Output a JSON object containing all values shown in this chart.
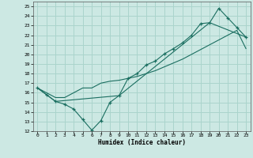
{
  "xlabel": "Humidex (Indice chaleur)",
  "background_color": "#cce8e3",
  "grid_color": "#aad4cc",
  "line_color": "#1a6e60",
  "xlim": [
    -0.5,
    23.5
  ],
  "ylim": [
    12,
    25.5
  ],
  "xticks": [
    0,
    1,
    2,
    3,
    4,
    5,
    6,
    7,
    8,
    9,
    10,
    11,
    12,
    13,
    14,
    15,
    16,
    17,
    18,
    19,
    20,
    21,
    22,
    23
  ],
  "yticks": [
    12,
    13,
    14,
    15,
    16,
    17,
    18,
    19,
    20,
    21,
    22,
    23,
    24,
    25
  ],
  "line1_x": [
    0,
    1,
    2,
    3,
    4,
    5,
    6,
    7,
    8,
    9,
    10,
    11,
    12,
    13,
    14,
    15,
    16,
    17,
    18,
    19,
    20,
    21,
    22,
    23
  ],
  "line1_y": [
    16.5,
    15.8,
    15.1,
    14.8,
    14.3,
    13.2,
    12.1,
    13.1,
    15.0,
    15.7,
    17.5,
    18.0,
    18.9,
    19.3,
    20.05,
    20.6,
    21.2,
    22.0,
    23.2,
    23.3,
    24.8,
    23.8,
    22.8,
    21.8
  ],
  "line2_x": [
    0,
    2,
    3,
    4,
    5,
    6,
    7,
    8,
    9,
    10,
    11,
    12,
    13,
    14,
    15,
    16,
    17,
    18,
    19,
    20,
    21,
    22,
    23
  ],
  "line2_y": [
    16.5,
    15.5,
    15.5,
    16.0,
    16.5,
    16.5,
    17.0,
    17.2,
    17.3,
    17.5,
    17.7,
    18.0,
    18.3,
    18.7,
    19.1,
    19.5,
    20.0,
    20.5,
    21.0,
    21.5,
    22.0,
    22.5,
    20.6
  ],
  "line3_x": [
    0,
    2,
    9,
    19,
    23
  ],
  "line3_y": [
    16.5,
    15.1,
    15.7,
    23.3,
    21.8
  ]
}
